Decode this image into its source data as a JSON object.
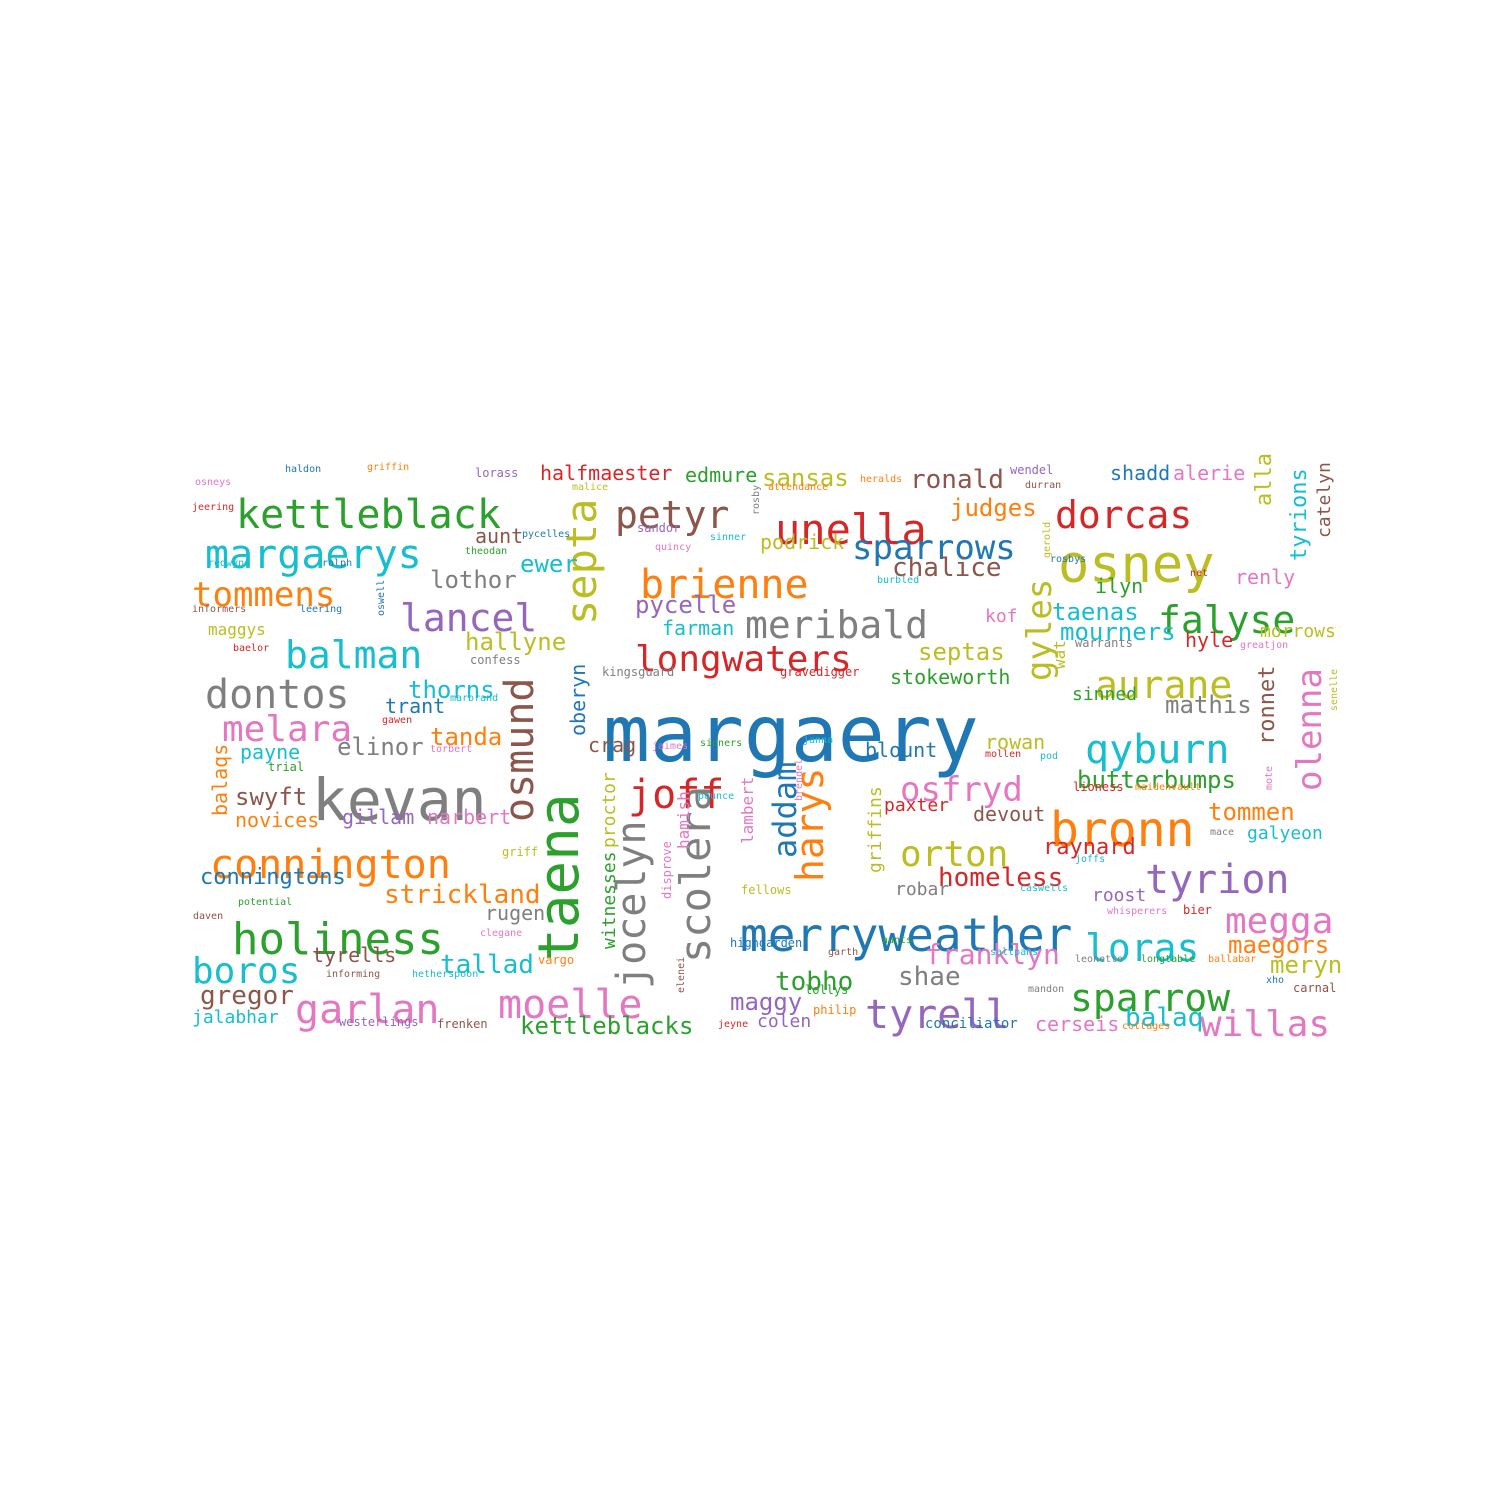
{
  "palette": {
    "blue": "#1f77b4",
    "orange": "#ff7f0e",
    "green": "#2ca02c",
    "red": "#d62728",
    "purple": "#9467bd",
    "brown": "#8c564b",
    "pink": "#e377c2",
    "gray": "#7f7f7f",
    "olive": "#bcbd22",
    "cyan": "#17becf"
  },
  "words": [
    {
      "text": "margaery",
      "color": "blue"
    },
    {
      "text": "kevan",
      "color": "gray"
    },
    {
      "text": "taena",
      "color": "green"
    },
    {
      "text": "osney",
      "color": "olive"
    },
    {
      "text": "bronn",
      "color": "orange"
    },
    {
      "text": "merryweather",
      "color": "blue"
    },
    {
      "text": "holiness",
      "color": "green"
    },
    {
      "text": "septa",
      "color": "olive"
    },
    {
      "text": "scolera",
      "color": "gray"
    },
    {
      "text": "unella",
      "color": "red"
    },
    {
      "text": "kettleblack",
      "color": "green"
    },
    {
      "text": "osmund",
      "color": "brown"
    },
    {
      "text": "connington",
      "color": "orange"
    },
    {
      "text": "margaerys",
      "color": "cyan"
    },
    {
      "text": "dorcas",
      "color": "red"
    },
    {
      "text": "qyburn",
      "color": "cyan"
    },
    {
      "text": "tyrion",
      "color": "purple"
    },
    {
      "text": "joff",
      "color": "red"
    },
    {
      "text": "moelle",
      "color": "pink"
    },
    {
      "text": "garlan",
      "color": "pink"
    },
    {
      "text": "jocelyn",
      "color": "gray"
    },
    {
      "text": "harys",
      "color": "orange"
    },
    {
      "text": "tyrell",
      "color": "purple"
    },
    {
      "text": "sparrow",
      "color": "green"
    },
    {
      "text": "meribald",
      "color": "gray"
    },
    {
      "text": "falyse",
      "color": "green"
    },
    {
      "text": "brienne",
      "color": "orange"
    },
    {
      "text": "longwaters",
      "color": "red"
    },
    {
      "text": "petyr",
      "color": "brown"
    },
    {
      "text": "dontos",
      "color": "gray"
    },
    {
      "text": "balman",
      "color": "cyan"
    },
    {
      "text": "lancel",
      "color": "purple"
    },
    {
      "text": "aurane",
      "color": "olive"
    },
    {
      "text": "loras",
      "color": "cyan"
    },
    {
      "text": "megga",
      "color": "pink"
    },
    {
      "text": "willas",
      "color": "pink"
    },
    {
      "text": "olenna",
      "color": "pink"
    },
    {
      "text": "gyles",
      "color": "olive"
    },
    {
      "text": "orton",
      "color": "olive"
    },
    {
      "text": "osfryd",
      "color": "pink"
    },
    {
      "text": "melara",
      "color": "pink"
    },
    {
      "text": "boros",
      "color": "cyan"
    },
    {
      "text": "tommens",
      "color": "orange"
    },
    {
      "text": "sparrows",
      "color": "blue"
    },
    {
      "text": "addam",
      "color": "blue"
    },
    {
      "text": "strickland",
      "color": "orange"
    },
    {
      "text": "franklyn",
      "color": "pink"
    },
    {
      "text": "tobho",
      "color": "green"
    },
    {
      "text": "gregor",
      "color": "brown"
    },
    {
      "text": "tallad",
      "color": "cyan"
    },
    {
      "text": "kettleblacks",
      "color": "green"
    },
    {
      "text": "maggy",
      "color": "purple"
    },
    {
      "text": "shae",
      "color": "gray"
    },
    {
      "text": "balaq",
      "color": "cyan"
    },
    {
      "text": "cerseis",
      "color": "pink"
    },
    {
      "text": "maegors",
      "color": "orange"
    },
    {
      "text": "meryn",
      "color": "olive"
    },
    {
      "text": "homeless",
      "color": "red"
    },
    {
      "text": "raynard",
      "color": "red"
    },
    {
      "text": "tommen",
      "color": "orange"
    },
    {
      "text": "butterbumps",
      "color": "green"
    },
    {
      "text": "ronnet",
      "color": "brown"
    },
    {
      "text": "mathis",
      "color": "gray"
    },
    {
      "text": "rowan",
      "color": "olive"
    },
    {
      "text": "blount",
      "color": "blue"
    },
    {
      "text": "stokeworth",
      "color": "green"
    },
    {
      "text": "septas",
      "color": "olive"
    },
    {
      "text": "mourners",
      "color": "cyan"
    },
    {
      "text": "taenas",
      "color": "cyan"
    },
    {
      "text": "hyle",
      "color": "red"
    },
    {
      "text": "morrows",
      "color": "olive"
    },
    {
      "text": "renly",
      "color": "pink"
    },
    {
      "text": "ilyn",
      "color": "green"
    },
    {
      "text": "alla",
      "color": "olive"
    },
    {
      "text": "tyrions",
      "color": "cyan"
    },
    {
      "text": "catelyn",
      "color": "brown"
    },
    {
      "text": "alerie",
      "color": "pink"
    },
    {
      "text": "shadd",
      "color": "blue"
    },
    {
      "text": "ronald",
      "color": "brown"
    },
    {
      "text": "judges",
      "color": "orange"
    },
    {
      "text": "chalice",
      "color": "brown"
    },
    {
      "text": "sansas",
      "color": "olive"
    },
    {
      "text": "podrick",
      "color": "olive"
    },
    {
      "text": "edmure",
      "color": "green"
    },
    {
      "text": "halfmaester",
      "color": "red"
    },
    {
      "text": "aunt",
      "color": "brown"
    },
    {
      "text": "ewer",
      "color": "cyan"
    },
    {
      "text": "lothor",
      "color": "gray"
    },
    {
      "text": "pycelle",
      "color": "purple"
    },
    {
      "text": "farman",
      "color": "cyan"
    },
    {
      "text": "hallyne",
      "color": "olive"
    },
    {
      "text": "thorns",
      "color": "cyan"
    },
    {
      "text": "trant",
      "color": "blue"
    },
    {
      "text": "tanda",
      "color": "orange"
    },
    {
      "text": "elinor",
      "color": "gray"
    },
    {
      "text": "oberyn",
      "color": "blue"
    },
    {
      "text": "crag",
      "color": "brown"
    },
    {
      "text": "payne",
      "color": "cyan"
    },
    {
      "text": "swyft",
      "color": "brown"
    },
    {
      "text": "balaqs",
      "color": "orange"
    },
    {
      "text": "gillam",
      "color": "purple"
    },
    {
      "text": "narbert",
      "color": "pink"
    },
    {
      "text": "novices",
      "color": "orange"
    },
    {
      "text": "conningtons",
      "color": "blue"
    },
    {
      "text": "rugen",
      "color": "gray"
    },
    {
      "text": "tyrells",
      "color": "brown"
    },
    {
      "text": "jalabhar",
      "color": "cyan"
    },
    {
      "text": "colen",
      "color": "purple"
    },
    {
      "text": "conciliator",
      "color": "blue"
    },
    {
      "text": "proctor",
      "color": "olive"
    },
    {
      "text": "hamish",
      "color": "pink"
    },
    {
      "text": "witnesses",
      "color": "green"
    },
    {
      "text": "lambert",
      "color": "pink"
    },
    {
      "text": "griffins",
      "color": "olive"
    },
    {
      "text": "paxter",
      "color": "red"
    },
    {
      "text": "devout",
      "color": "brown"
    },
    {
      "text": "robar",
      "color": "gray"
    },
    {
      "text": "roost",
      "color": "purple"
    },
    {
      "text": "galyeon",
      "color": "cyan"
    },
    {
      "text": "kof",
      "color": "pink"
    },
    {
      "text": "wat",
      "color": "olive"
    },
    {
      "text": "sinned",
      "color": "green"
    },
    {
      "text": "confess",
      "color": "gray"
    },
    {
      "text": "kingsguard",
      "color": "gray"
    },
    {
      "text": "gravedigger",
      "color": "red"
    },
    {
      "text": "maggys",
      "color": "olive"
    },
    {
      "text": "haldon",
      "color": "blue"
    },
    {
      "text": "griffin",
      "color": "orange"
    },
    {
      "text": "lorass",
      "color": "purple"
    },
    {
      "text": "heralds",
      "color": "orange"
    },
    {
      "text": "wendel",
      "color": "purple"
    },
    {
      "text": "durran",
      "color": "brown"
    },
    {
      "text": "osneys",
      "color": "pink"
    },
    {
      "text": "jeering",
      "color": "red"
    },
    {
      "text": "malice",
      "color": "olive"
    },
    {
      "text": "attendance",
      "color": "orange"
    },
    {
      "text": "rosby",
      "color": "gray"
    },
    {
      "text": "sandor",
      "color": "purple"
    },
    {
      "text": "pycelles",
      "color": "blue"
    },
    {
      "text": "theodan",
      "color": "green"
    },
    {
      "text": "quincy",
      "color": "pink"
    },
    {
      "text": "sinner",
      "color": "cyan"
    },
    {
      "text": "gerold",
      "color": "olive"
    },
    {
      "text": "rosbys",
      "color": "blue"
    },
    {
      "text": "burbled",
      "color": "cyan"
    },
    {
      "text": "net",
      "color": "red"
    },
    {
      "text": "warrants",
      "color": "gray"
    },
    {
      "text": "greatjon",
      "color": "pink"
    },
    {
      "text": "redwyne",
      "color": "cyan"
    },
    {
      "text": "rolph",
      "color": "blue"
    },
    {
      "text": "oswell",
      "color": "blue"
    },
    {
      "text": "informers",
      "color": "brown"
    },
    {
      "text": "leering",
      "color": "blue"
    },
    {
      "text": "baelor",
      "color": "red"
    },
    {
      "text": "marbrand",
      "color": "cyan"
    },
    {
      "text": "gawen",
      "color": "red"
    },
    {
      "text": "torbert",
      "color": "pink"
    },
    {
      "text": "jaimes",
      "color": "pink"
    },
    {
      "text": "sinners",
      "color": "green"
    },
    {
      "text": "janna",
      "color": "cyan"
    },
    {
      "text": "mollen",
      "color": "red"
    },
    {
      "text": "pod",
      "color": "cyan"
    },
    {
      "text": "senelle",
      "color": "olive"
    },
    {
      "text": "mote",
      "color": "pink"
    },
    {
      "text": "trial",
      "color": "green"
    },
    {
      "text": "lioness",
      "color": "red"
    },
    {
      "text": "maidenvault",
      "color": "orange"
    },
    {
      "text": "pounce",
      "color": "cyan"
    },
    {
      "text": "brendel",
      "color": "pink"
    },
    {
      "text": "mace",
      "color": "gray"
    },
    {
      "text": "griff",
      "color": "olive"
    },
    {
      "text": "joffs",
      "color": "cyan"
    },
    {
      "text": "disprove",
      "color": "pink"
    },
    {
      "text": "fellows",
      "color": "olive"
    },
    {
      "text": "caswells",
      "color": "cyan"
    },
    {
      "text": "potential",
      "color": "green"
    },
    {
      "text": "whisperers",
      "color": "pink"
    },
    {
      "text": "bier",
      "color": "red"
    },
    {
      "text": "daven",
      "color": "brown"
    },
    {
      "text": "clegane",
      "color": "pink"
    },
    {
      "text": "highgarden",
      "color": "blue"
    },
    {
      "text": "aunts",
      "color": "green"
    },
    {
      "text": "garth",
      "color": "brown"
    },
    {
      "text": "informing",
      "color": "brown"
    },
    {
      "text": "hetherspoon",
      "color": "cyan"
    },
    {
      "text": "vargo",
      "color": "orange"
    },
    {
      "text": "leonette",
      "color": "gray"
    },
    {
      "text": "longtable",
      "color": "green"
    },
    {
      "text": "ballabar",
      "color": "orange"
    },
    {
      "text": "saltpans",
      "color": "cyan"
    },
    {
      "text": "elenei",
      "color": "brown"
    },
    {
      "text": "mandon",
      "color": "gray"
    },
    {
      "text": "xho",
      "color": "blue"
    },
    {
      "text": "carnal",
      "color": "brown"
    },
    {
      "text": "lollys",
      "color": "green"
    },
    {
      "text": "philip",
      "color": "orange"
    },
    {
      "text": "westerlings",
      "color": "purple"
    },
    {
      "text": "frenken",
      "color": "brown"
    },
    {
      "text": "jeyne",
      "color": "red"
    },
    {
      "text": "cottages",
      "color": "orange"
    }
  ]
}
